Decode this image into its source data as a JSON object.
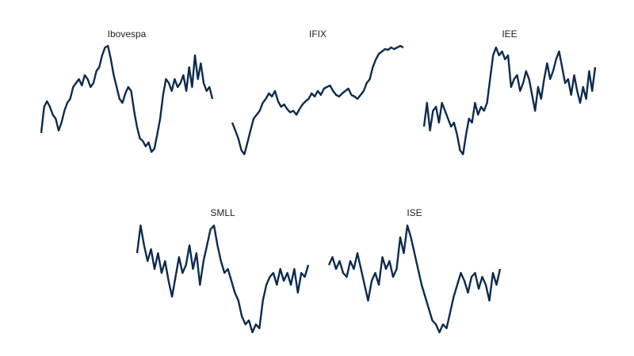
{
  "chart_data": [
    {
      "type": "line",
      "title": "Ibovespa",
      "color": "#0d2b4e",
      "ylim": [
        0,
        150
      ],
      "values": [
        32,
        65,
        72,
        65,
        55,
        50,
        35,
        45,
        60,
        70,
        75,
        90,
        95,
        100,
        92,
        105,
        100,
        90,
        95,
        110,
        115,
        130,
        140,
        142,
        125,
        105,
        90,
        75,
        70,
        82,
        90,
        85,
        60,
        40,
        25,
        22,
        15,
        20,
        8,
        12,
        30,
        50,
        80,
        100,
        95,
        85,
        100,
        90,
        95,
        105,
        85,
        115,
        90,
        130,
        100,
        120,
        95,
        85,
        90,
        75
      ]
    },
    {
      "type": "line",
      "title": "IFIX",
      "color": "#0d2b4e",
      "ylim": [
        0,
        150
      ],
      "values": [
        45,
        35,
        25,
        10,
        5,
        20,
        35,
        50,
        55,
        60,
        70,
        75,
        82,
        78,
        85,
        72,
        65,
        68,
        62,
        58,
        60,
        55,
        62,
        68,
        72,
        75,
        82,
        78,
        85,
        80,
        88,
        90,
        92,
        85,
        80,
        78,
        82,
        85,
        88,
        80,
        78,
        75,
        80,
        85,
        95,
        100,
        115,
        125,
        132,
        135,
        138,
        137,
        140,
        138,
        140,
        142,
        140
      ]
    },
    {
      "type": "line",
      "title": "IEE",
      "color": "#0d2b4e",
      "ylim": [
        0,
        150
      ],
      "values": [
        40,
        70,
        35,
        60,
        65,
        45,
        70,
        60,
        50,
        40,
        45,
        30,
        10,
        5,
        30,
        50,
        45,
        70,
        55,
        65,
        60,
        70,
        100,
        130,
        140,
        130,
        135,
        125,
        130,
        90,
        100,
        105,
        85,
        95,
        110,
        100,
        80,
        60,
        90,
        75,
        100,
        120,
        100,
        110,
        125,
        135,
        115,
        95,
        100,
        80,
        105,
        85,
        70,
        90,
        75,
        110,
        85,
        115
      ]
    },
    {
      "type": "line",
      "title": "SMLL",
      "color": "#0d2b4e",
      "ylim": [
        0,
        150
      ],
      "values": [
        105,
        140,
        115,
        95,
        110,
        85,
        105,
        80,
        95,
        70,
        50,
        75,
        100,
        80,
        90,
        115,
        85,
        105,
        65,
        95,
        115,
        135,
        140,
        115,
        95,
        80,
        85,
        70,
        55,
        45,
        25,
        15,
        20,
        5,
        15,
        10,
        45,
        65,
        75,
        80,
        65,
        85,
        70,
        80,
        65,
        85,
        55,
        80,
        75,
        90
      ]
    },
    {
      "type": "line",
      "title": "ISE",
      "color": "#0d2b4e",
      "ylim": [
        0,
        150
      ],
      "values": [
        90,
        100,
        85,
        95,
        80,
        75,
        95,
        85,
        105,
        85,
        65,
        45,
        70,
        80,
        65,
        100,
        85,
        95,
        75,
        85,
        125,
        105,
        140,
        125,
        105,
        85,
        65,
        50,
        35,
        20,
        15,
        5,
        15,
        10,
        30,
        50,
        65,
        80,
        70,
        55,
        75,
        80,
        60,
        75,
        65,
        45,
        80,
        65,
        85
      ]
    }
  ]
}
